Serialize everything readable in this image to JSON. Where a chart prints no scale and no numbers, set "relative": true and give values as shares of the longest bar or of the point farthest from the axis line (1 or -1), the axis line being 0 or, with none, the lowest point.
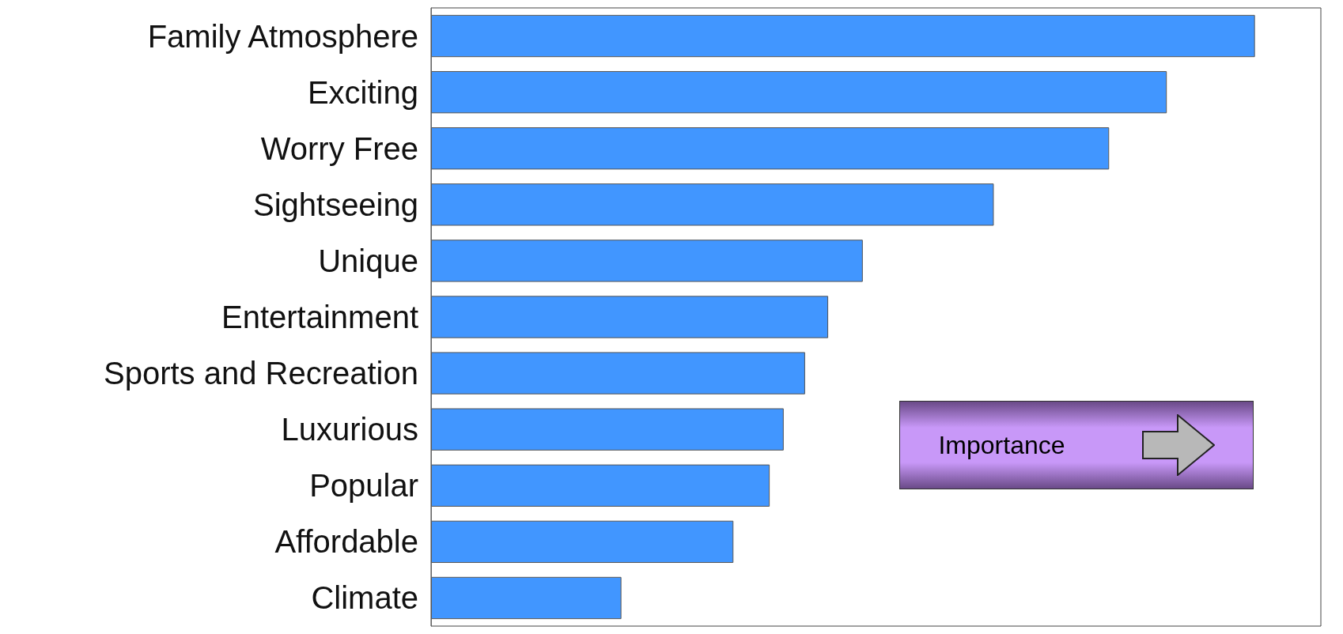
{
  "chart_data": {
    "type": "bar",
    "orientation": "horizontal",
    "relative": true,
    "categories": [
      "Family Atmosphere",
      "Exciting",
      "Worry Free",
      "Sightseeing",
      "Unique",
      "Entertainment",
      "Sports and Recreation",
      "Luxurious",
      "Popular",
      "Affordable",
      "Climate"
    ],
    "values": [
      1,
      0.893,
      0.823,
      0.683,
      0.524,
      0.482,
      0.454,
      0.428,
      0.411,
      0.367,
      0.231
    ],
    "color": "#4196ff",
    "annotations": [
      "Importance"
    ]
  }
}
